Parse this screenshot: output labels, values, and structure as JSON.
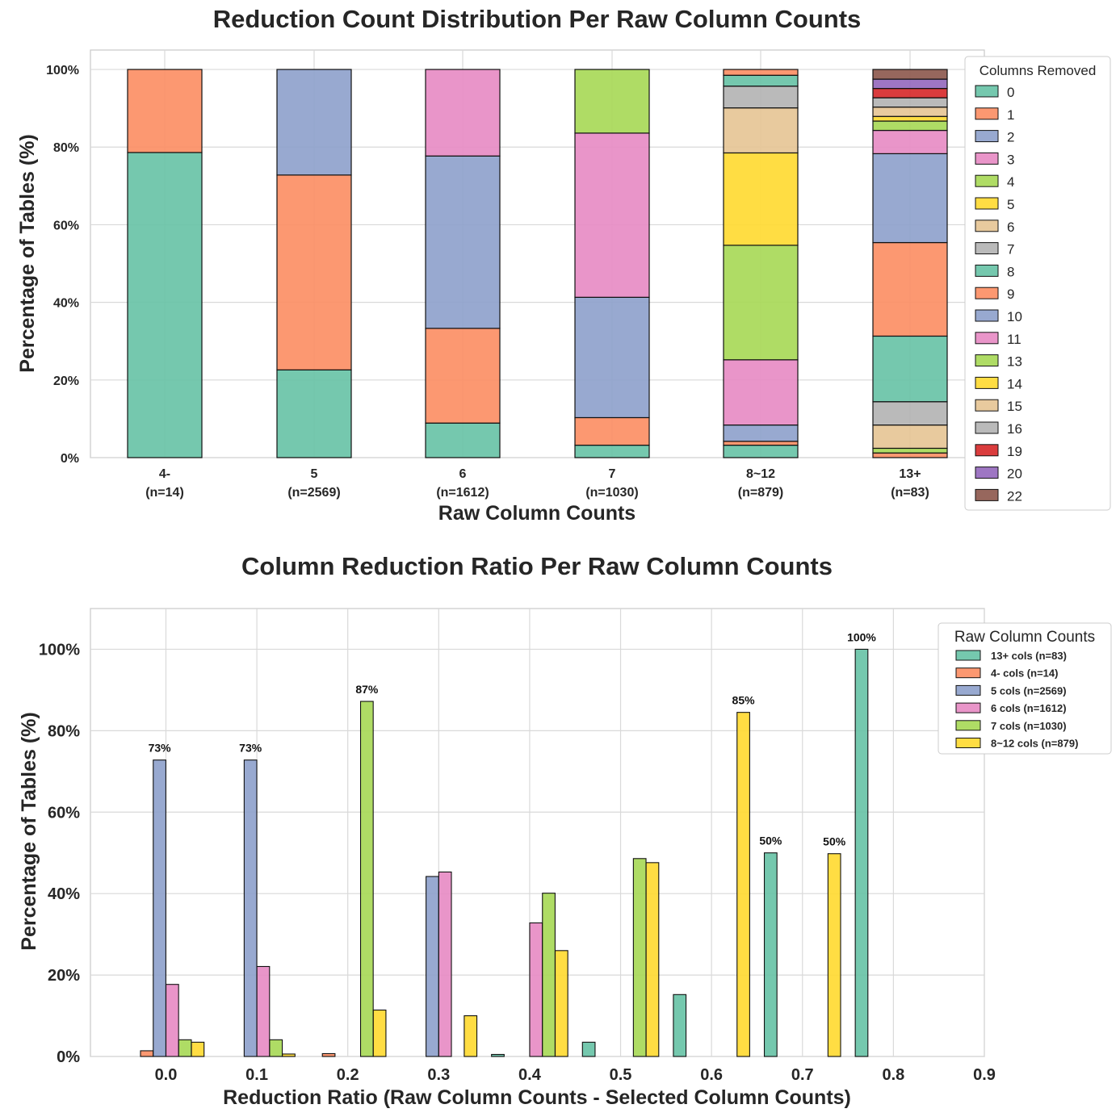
{
  "chart_data": [
    {
      "type": "bar",
      "stacked": true,
      "title": "Reduction Count Distribution Per Raw Column Counts",
      "xlabel": "Raw Column Counts",
      "ylabel": "Percentage of Tables (%)",
      "ylim": [
        0,
        105
      ],
      "yticks": [
        "0%",
        "20%",
        "40%",
        "60%",
        "80%",
        "100%"
      ],
      "categories": [
        {
          "name": "4-",
          "n": "(n=14)"
        },
        {
          "name": "5",
          "n": "(n=2569)"
        },
        {
          "name": "6",
          "n": "(n=1612)"
        },
        {
          "name": "7",
          "n": "(n=1030)"
        },
        {
          "name": "8~12",
          "n": "(n=879)"
        },
        {
          "name": "13+",
          "n": "(n=83)"
        }
      ],
      "legend": {
        "title": "Columns Removed",
        "placement": "upper right, outside"
      },
      "series": [
        {
          "name": "0",
          "color": "#66c2a5",
          "values": [
            78.6,
            22.6,
            8.9,
            3.2,
            3.2,
            0
          ]
        },
        {
          "name": "1",
          "color": "#fc8d62",
          "values": [
            21.4,
            50.2,
            24.4,
            7.1,
            1.0,
            1.2
          ]
        },
        {
          "name": "2",
          "color": "#8da0cb",
          "values": [
            0,
            27.2,
            44.4,
            31.0,
            4.2,
            0
          ]
        },
        {
          "name": "3",
          "color": "#e78ac3",
          "values": [
            0,
            0,
            22.3,
            42.3,
            16.8,
            0
          ]
        },
        {
          "name": "4",
          "color": "#a6d854",
          "values": [
            0,
            0,
            0,
            16.4,
            29.5,
            1.2
          ]
        },
        {
          "name": "5",
          "color": "#ffd92f",
          "values": [
            0,
            0,
            0,
            0,
            23.8,
            0
          ]
        },
        {
          "name": "6",
          "color": "#e5c494",
          "values": [
            0,
            0,
            0,
            0,
            11.6,
            6.0
          ]
        },
        {
          "name": "7",
          "color": "#b3b3b3",
          "values": [
            0,
            0,
            0,
            0,
            5.6,
            6.0
          ]
        },
        {
          "name": "8",
          "color": "#66c2a5",
          "values": [
            0,
            0,
            0,
            0,
            2.8,
            16.9
          ]
        },
        {
          "name": "9",
          "color": "#fc8d62",
          "values": [
            0,
            0,
            0,
            0,
            1.5,
            24.1
          ]
        },
        {
          "name": "10",
          "color": "#8da0cb",
          "values": [
            0,
            0,
            0,
            0,
            0,
            22.9
          ]
        },
        {
          "name": "11",
          "color": "#e78ac3",
          "values": [
            0,
            0,
            0,
            0,
            0,
            6.0
          ]
        },
        {
          "name": "13",
          "color": "#a6d854",
          "values": [
            0,
            0,
            0,
            0,
            0,
            2.4
          ]
        },
        {
          "name": "14",
          "color": "#ffd92f",
          "values": [
            0,
            0,
            0,
            0,
            0,
            1.2
          ]
        },
        {
          "name": "15",
          "color": "#e5c494",
          "values": [
            0,
            0,
            0,
            0,
            0,
            2.4
          ]
        },
        {
          "name": "16",
          "color": "#b3b3b3",
          "values": [
            0,
            0,
            0,
            0,
            0,
            2.4
          ]
        },
        {
          "name": "19",
          "color": "#d62728",
          "values": [
            0,
            0,
            0,
            0,
            0,
            2.4
          ]
        },
        {
          "name": "20",
          "color": "#9467bd",
          "values": [
            0,
            0,
            0,
            0,
            0,
            2.4
          ]
        },
        {
          "name": "22",
          "color": "#8c564b",
          "values": [
            0,
            0,
            0,
            0,
            0,
            2.5
          ]
        }
      ]
    },
    {
      "type": "bar",
      "grouped": true,
      "title": "Column Reduction Ratio Per Raw Column Counts",
      "xlabel": "Reduction Ratio (Raw Column Counts - Selected Column Counts)",
      "ylabel": "Percentage of Tables (%)",
      "xlim": [
        -0.083,
        0.9
      ],
      "ylim": [
        0,
        110
      ],
      "xticks": [
        "0.0",
        "0.1",
        "0.2",
        "0.3",
        "0.4",
        "0.5",
        "0.6",
        "0.7",
        "0.8",
        "0.9"
      ],
      "yticks": [
        "0%",
        "20%",
        "40%",
        "60%",
        "80%",
        "100%"
      ],
      "bar_width": 0.0139,
      "legend": {
        "title": "Raw Column Counts",
        "placement": "upper right, outside"
      },
      "series": [
        {
          "name": "13+ cols (n=83)",
          "color": "#66c2a5",
          "points": [
            {
              "x": -0.035,
              "y": 0
            },
            {
              "x": 0.365,
              "y": 0.5
            },
            {
              "x": 0.465,
              "y": 3.5
            },
            {
              "x": 0.565,
              "y": 15.2
            },
            {
              "x": 0.665,
              "y": 50,
              "label": "50%"
            },
            {
              "x": 0.765,
              "y": 100,
              "label": "100%"
            }
          ]
        },
        {
          "name": "4- cols (n=14)",
          "color": "#fc8d62",
          "points": [
            {
              "x": -0.021,
              "y": 1.4
            },
            {
              "x": 0.079,
              "y": 0
            },
            {
              "x": 0.179,
              "y": 0.7
            }
          ]
        },
        {
          "name": "5 cols (n=2569)",
          "color": "#8da0cb",
          "points": [
            {
              "x": -0.007,
              "y": 72.8,
              "label": "73%"
            },
            {
              "x": 0.093,
              "y": 72.8,
              "label": "73%"
            },
            {
              "x": 0.193,
              "y": 0
            },
            {
              "x": 0.293,
              "y": 44.2
            }
          ]
        },
        {
          "name": "6 cols (n=1612)",
          "color": "#e78ac3",
          "points": [
            {
              "x": 0.007,
              "y": 17.7
            },
            {
              "x": 0.107,
              "y": 22.1
            },
            {
              "x": 0.307,
              "y": 45.3
            },
            {
              "x": 0.407,
              "y": 32.8
            }
          ]
        },
        {
          "name": "7 cols (n=1030)",
          "color": "#a6d854",
          "points": [
            {
              "x": 0.021,
              "y": 4.1
            },
            {
              "x": 0.121,
              "y": 4.1
            },
            {
              "x": 0.221,
              "y": 87.2,
              "label": "87%"
            },
            {
              "x": 0.421,
              "y": 40.1
            },
            {
              "x": 0.521,
              "y": 48.6
            }
          ]
        },
        {
          "name": "8~12 cols (n=879)",
          "color": "#ffd92f",
          "points": [
            {
              "x": 0.035,
              "y": 3.5
            },
            {
              "x": 0.135,
              "y": 0.6
            },
            {
              "x": 0.235,
              "y": 11.4
            },
            {
              "x": 0.335,
              "y": 10.0
            },
            {
              "x": 0.435,
              "y": 26.0
            },
            {
              "x": 0.535,
              "y": 47.6
            },
            {
              "x": 0.635,
              "y": 84.5,
              "label": "85%"
            },
            {
              "x": 0.735,
              "y": 49.8,
              "label": "50%"
            }
          ]
        }
      ]
    }
  ]
}
